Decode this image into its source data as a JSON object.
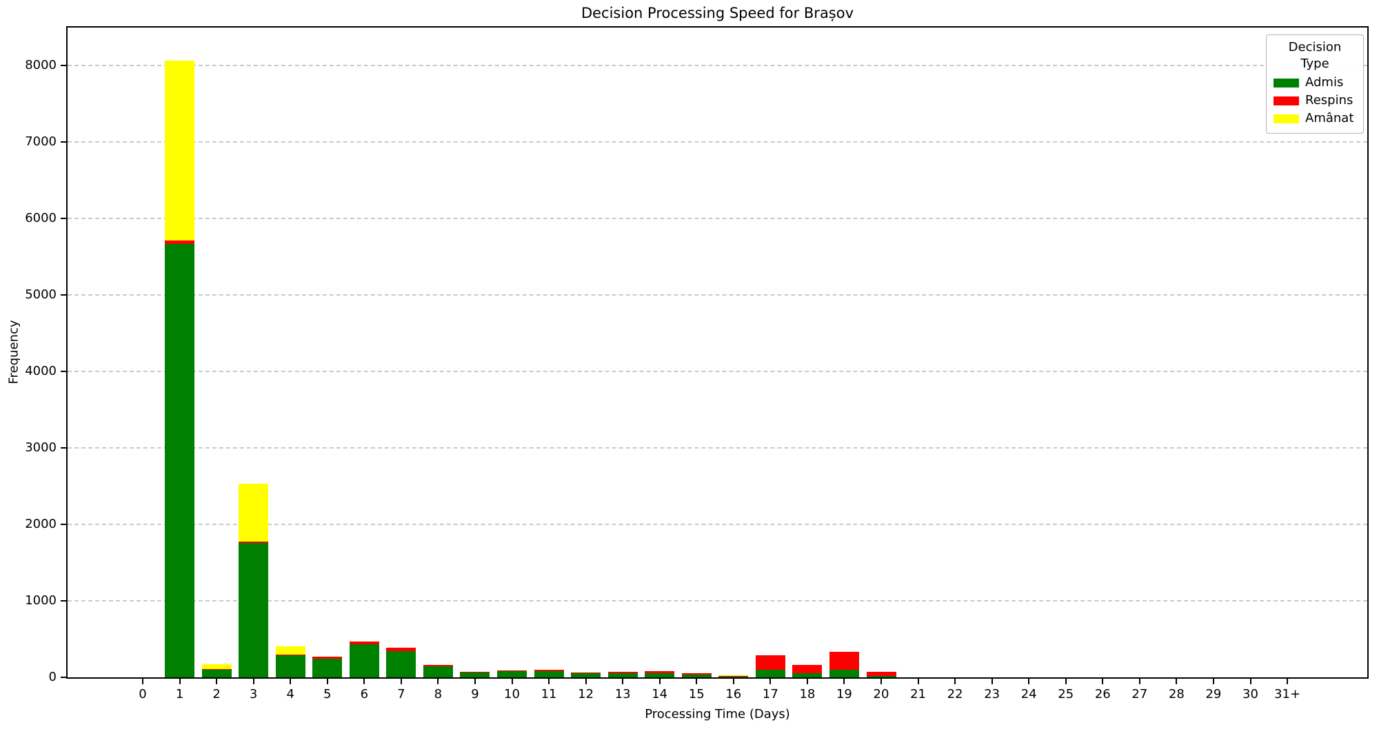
{
  "title": "Decision Processing Speed for Brașov",
  "chart_data": {
    "type": "bar",
    "stacked": true,
    "title": "Decision Processing Speed for Brașov",
    "xlabel": "Processing Time (Days)",
    "ylabel": "Frequency",
    "categories": [
      "0",
      "1",
      "2",
      "3",
      "4",
      "5",
      "6",
      "7",
      "8",
      "9",
      "10",
      "11",
      "12",
      "13",
      "14",
      "15",
      "16",
      "17",
      "18",
      "19",
      "20",
      "21",
      "22",
      "23",
      "24",
      "25",
      "26",
      "27",
      "28",
      "29",
      "30",
      "31+"
    ],
    "series": [
      {
        "name": "Admis",
        "color": "#008000",
        "values": [
          0,
          5670,
          100,
          1755,
          290,
          245,
          430,
          340,
          145,
          65,
          78,
          85,
          55,
          50,
          55,
          40,
          8,
          100,
          50,
          100,
          20,
          0,
          0,
          0,
          0,
          0,
          0,
          0,
          0,
          0,
          0,
          0
        ]
      },
      {
        "name": "Respins",
        "color": "#ff0000",
        "values": [
          0,
          45,
          10,
          25,
          10,
          25,
          40,
          45,
          20,
          8,
          12,
          15,
          10,
          20,
          28,
          12,
          10,
          185,
          110,
          230,
          55,
          0,
          0,
          0,
          0,
          0,
          0,
          0,
          0,
          0,
          0,
          0
        ]
      },
      {
        "name": "Amânat",
        "color": "#ffff00",
        "values": [
          0,
          2355,
          60,
          750,
          105,
          0,
          0,
          0,
          0,
          0,
          0,
          0,
          0,
          0,
          0,
          0,
          8,
          0,
          0,
          0,
          0,
          0,
          0,
          0,
          0,
          0,
          0,
          0,
          0,
          0,
          0,
          0
        ]
      }
    ],
    "ylim": [
      0,
      8500
    ],
    "yticks": [
      0,
      1000,
      2000,
      3000,
      4000,
      5000,
      6000,
      7000,
      8000
    ],
    "grid": "horizontal-dashed",
    "legend_title": "Decision Type",
    "legend_position": "top-right"
  }
}
